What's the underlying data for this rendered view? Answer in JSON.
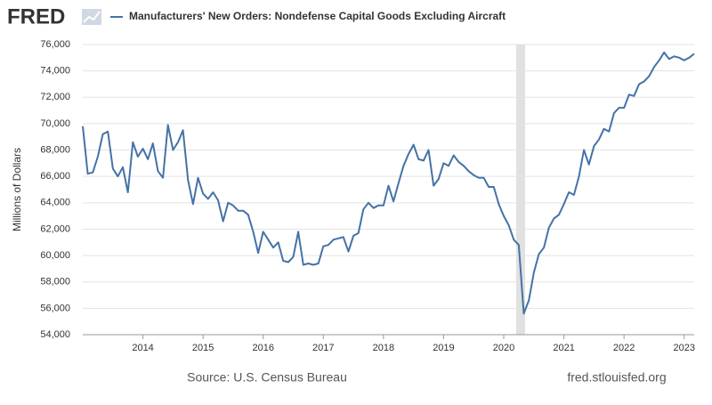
{
  "logo": "FRED",
  "footer": {
    "source": "Source: U.S. Census Bureau",
    "site": "fred.stlouisfed.org"
  },
  "chart_data": {
    "type": "line",
    "ylabel": "Millions of Dollars",
    "ylim": [
      54000,
      76000
    ],
    "yticks": [
      {
        "value": 54000,
        "label": "54,000"
      },
      {
        "value": 56000,
        "label": "56,000"
      },
      {
        "value": 58000,
        "label": "58,000"
      },
      {
        "value": 60000,
        "label": "60,000"
      },
      {
        "value": 62000,
        "label": "62,000"
      },
      {
        "value": 64000,
        "label": "64,000"
      },
      {
        "value": 66000,
        "label": "66,000"
      },
      {
        "value": 68000,
        "label": "68,000"
      },
      {
        "value": 70000,
        "label": "70,000"
      },
      {
        "value": 72000,
        "label": "72,000"
      },
      {
        "value": 74000,
        "label": "74,000"
      },
      {
        "value": 76000,
        "label": "76,000"
      }
    ],
    "grid": true,
    "categories": [
      null,
      null,
      null,
      null,
      null,
      null,
      null,
      null,
      null,
      null,
      null,
      null,
      "2014",
      null,
      null,
      null,
      null,
      null,
      null,
      null,
      null,
      null,
      null,
      null,
      "2015",
      null,
      null,
      null,
      null,
      null,
      null,
      null,
      null,
      null,
      null,
      null,
      "2016",
      null,
      null,
      null,
      null,
      null,
      null,
      null,
      null,
      null,
      null,
      null,
      "2017",
      null,
      null,
      null,
      null,
      null,
      null,
      null,
      null,
      null,
      null,
      null,
      "2018",
      null,
      null,
      null,
      null,
      null,
      null,
      null,
      null,
      null,
      null,
      null,
      "2019",
      null,
      null,
      null,
      null,
      null,
      null,
      null,
      null,
      null,
      null,
      null,
      "2020",
      null,
      null,
      null,
      null,
      null,
      null,
      null,
      null,
      null,
      null,
      null,
      "2021",
      null,
      null,
      null,
      null,
      null,
      null,
      null,
      null,
      null,
      null,
      null,
      "2022",
      null,
      null,
      null,
      null,
      null,
      null,
      null,
      null,
      null,
      null,
      null,
      "2023",
      null,
      null
    ],
    "series": [
      {
        "name": "Manufacturers' New Orders: Nondefense Capital Goods Excluding Aircraft",
        "color": "#4572a7",
        "values": [
          69800,
          66200,
          66300,
          67500,
          69200,
          69400,
          66600,
          66000,
          66700,
          64800,
          68600,
          67500,
          68100,
          67300,
          68500,
          66400,
          65900,
          69900,
          68000,
          68600,
          69500,
          65700,
          63900,
          65900,
          64700,
          64300,
          64800,
          64200,
          62600,
          64000,
          63800,
          63400,
          63400,
          63100,
          61800,
          60200,
          61800,
          61200,
          60600,
          61000,
          59600,
          59500,
          59900,
          61800,
          59300,
          59400,
          59300,
          59400,
          60700,
          60800,
          61200,
          61300,
          61400,
          60300,
          61500,
          61700,
          63500,
          64000,
          63600,
          63800,
          63800,
          65300,
          64100,
          65500,
          66800,
          67700,
          68400,
          67300,
          67200,
          68000,
          65300,
          65800,
          67000,
          66800,
          67600,
          67100,
          66800,
          66400,
          66100,
          65900,
          65900,
          65200,
          65200,
          63900,
          63000,
          62300,
          61200,
          60800,
          55600,
          56600,
          58700,
          60100,
          60600,
          62100,
          62800,
          63100,
          63900,
          64800,
          64600,
          66000,
          68000,
          66900,
          68300,
          68800,
          69600,
          69400,
          70800,
          71200,
          71200,
          72200,
          72100,
          73000,
          73200,
          73600,
          74300,
          74800,
          75400,
          74900,
          75100,
          75000,
          74800,
          75000,
          75300
        ]
      }
    ]
  }
}
